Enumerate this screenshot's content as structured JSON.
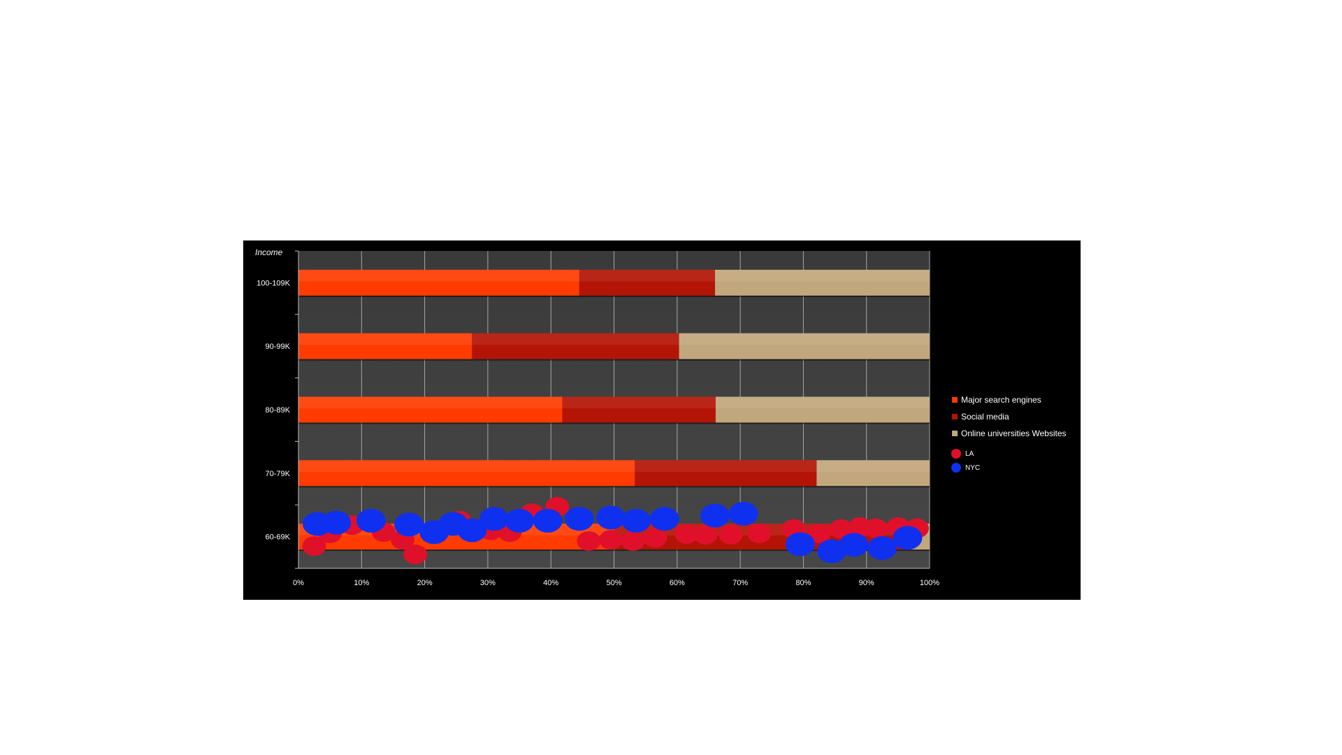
{
  "chart_data": {
    "type": "bar",
    "stacked": "percent",
    "orientation": "horizontal",
    "ylabel": "Income",
    "categories": [
      "100-109K",
      "90-99K",
      "80-89K",
      "70-79K",
      "60-69K"
    ],
    "series": [
      {
        "name": "Major search engines",
        "color": "#ff3b00",
        "values": [
          44.5,
          27.5,
          41.8,
          53.3,
          50
        ]
      },
      {
        "name": "Social media",
        "color": "#b41405",
        "values": [
          21.5,
          32.8,
          24.3,
          28.8,
          47
        ]
      },
      {
        "name": "Online universities Websites",
        "color": "#c2a77c",
        "values": [
          34.0,
          39.7,
          33.9,
          17.9,
          3
        ]
      }
    ],
    "xlim": [
      0,
      100
    ],
    "x_ticks": [
      "0%",
      "10%",
      "20%",
      "30%",
      "40%",
      "50%",
      "60%",
      "70%",
      "80%",
      "90%",
      "100%"
    ],
    "grid": true,
    "legend_position": "right",
    "overlay_points": [
      {
        "name": "LA",
        "color": "#e0102a",
        "points": [
          [
            2.5,
            -0.15
          ],
          [
            5,
            0.05
          ],
          [
            8.5,
            0.18
          ],
          [
            13.5,
            0.07
          ],
          [
            16.5,
            -0.05
          ],
          [
            18.5,
            -0.28
          ],
          [
            25.5,
            0.25
          ],
          [
            30.5,
            0.1
          ],
          [
            33.5,
            0.07
          ],
          [
            37,
            0.37
          ],
          [
            41,
            0.47
          ],
          [
            46,
            -0.07
          ],
          [
            49.5,
            -0.05
          ],
          [
            53,
            -0.07
          ],
          [
            56.5,
            -0.02
          ],
          [
            61.5,
            0.04
          ],
          [
            64.5,
            0.03
          ],
          [
            68.5,
            0.03
          ],
          [
            73,
            0.05
          ],
          [
            78.5,
            0.12
          ],
          [
            82.5,
            0.05
          ],
          [
            86,
            0.12
          ],
          [
            89,
            0.15
          ],
          [
            91.5,
            0.13
          ],
          [
            95,
            0.15
          ],
          [
            98,
            0.13
          ]
        ]
      },
      {
        "name": "NYC",
        "color": "#1030f0",
        "points": [
          [
            3,
            0.2
          ],
          [
            6,
            0.22
          ],
          [
            11.5,
            0.25
          ],
          [
            17.5,
            0.19
          ],
          [
            21.5,
            0.07
          ],
          [
            24.5,
            0.2
          ],
          [
            27.5,
            0.1
          ],
          [
            31,
            0.28
          ],
          [
            35,
            0.25
          ],
          [
            39.5,
            0.25
          ],
          [
            44.5,
            0.28
          ],
          [
            49.5,
            0.3
          ],
          [
            53.5,
            0.25
          ],
          [
            58,
            0.28
          ],
          [
            66,
            0.33
          ],
          [
            70.5,
            0.36
          ],
          [
            79.5,
            -0.12
          ],
          [
            84.5,
            -0.23
          ],
          [
            88,
            -0.13
          ],
          [
            92.5,
            -0.18
          ],
          [
            96.5,
            -0.02
          ]
        ]
      }
    ]
  }
}
